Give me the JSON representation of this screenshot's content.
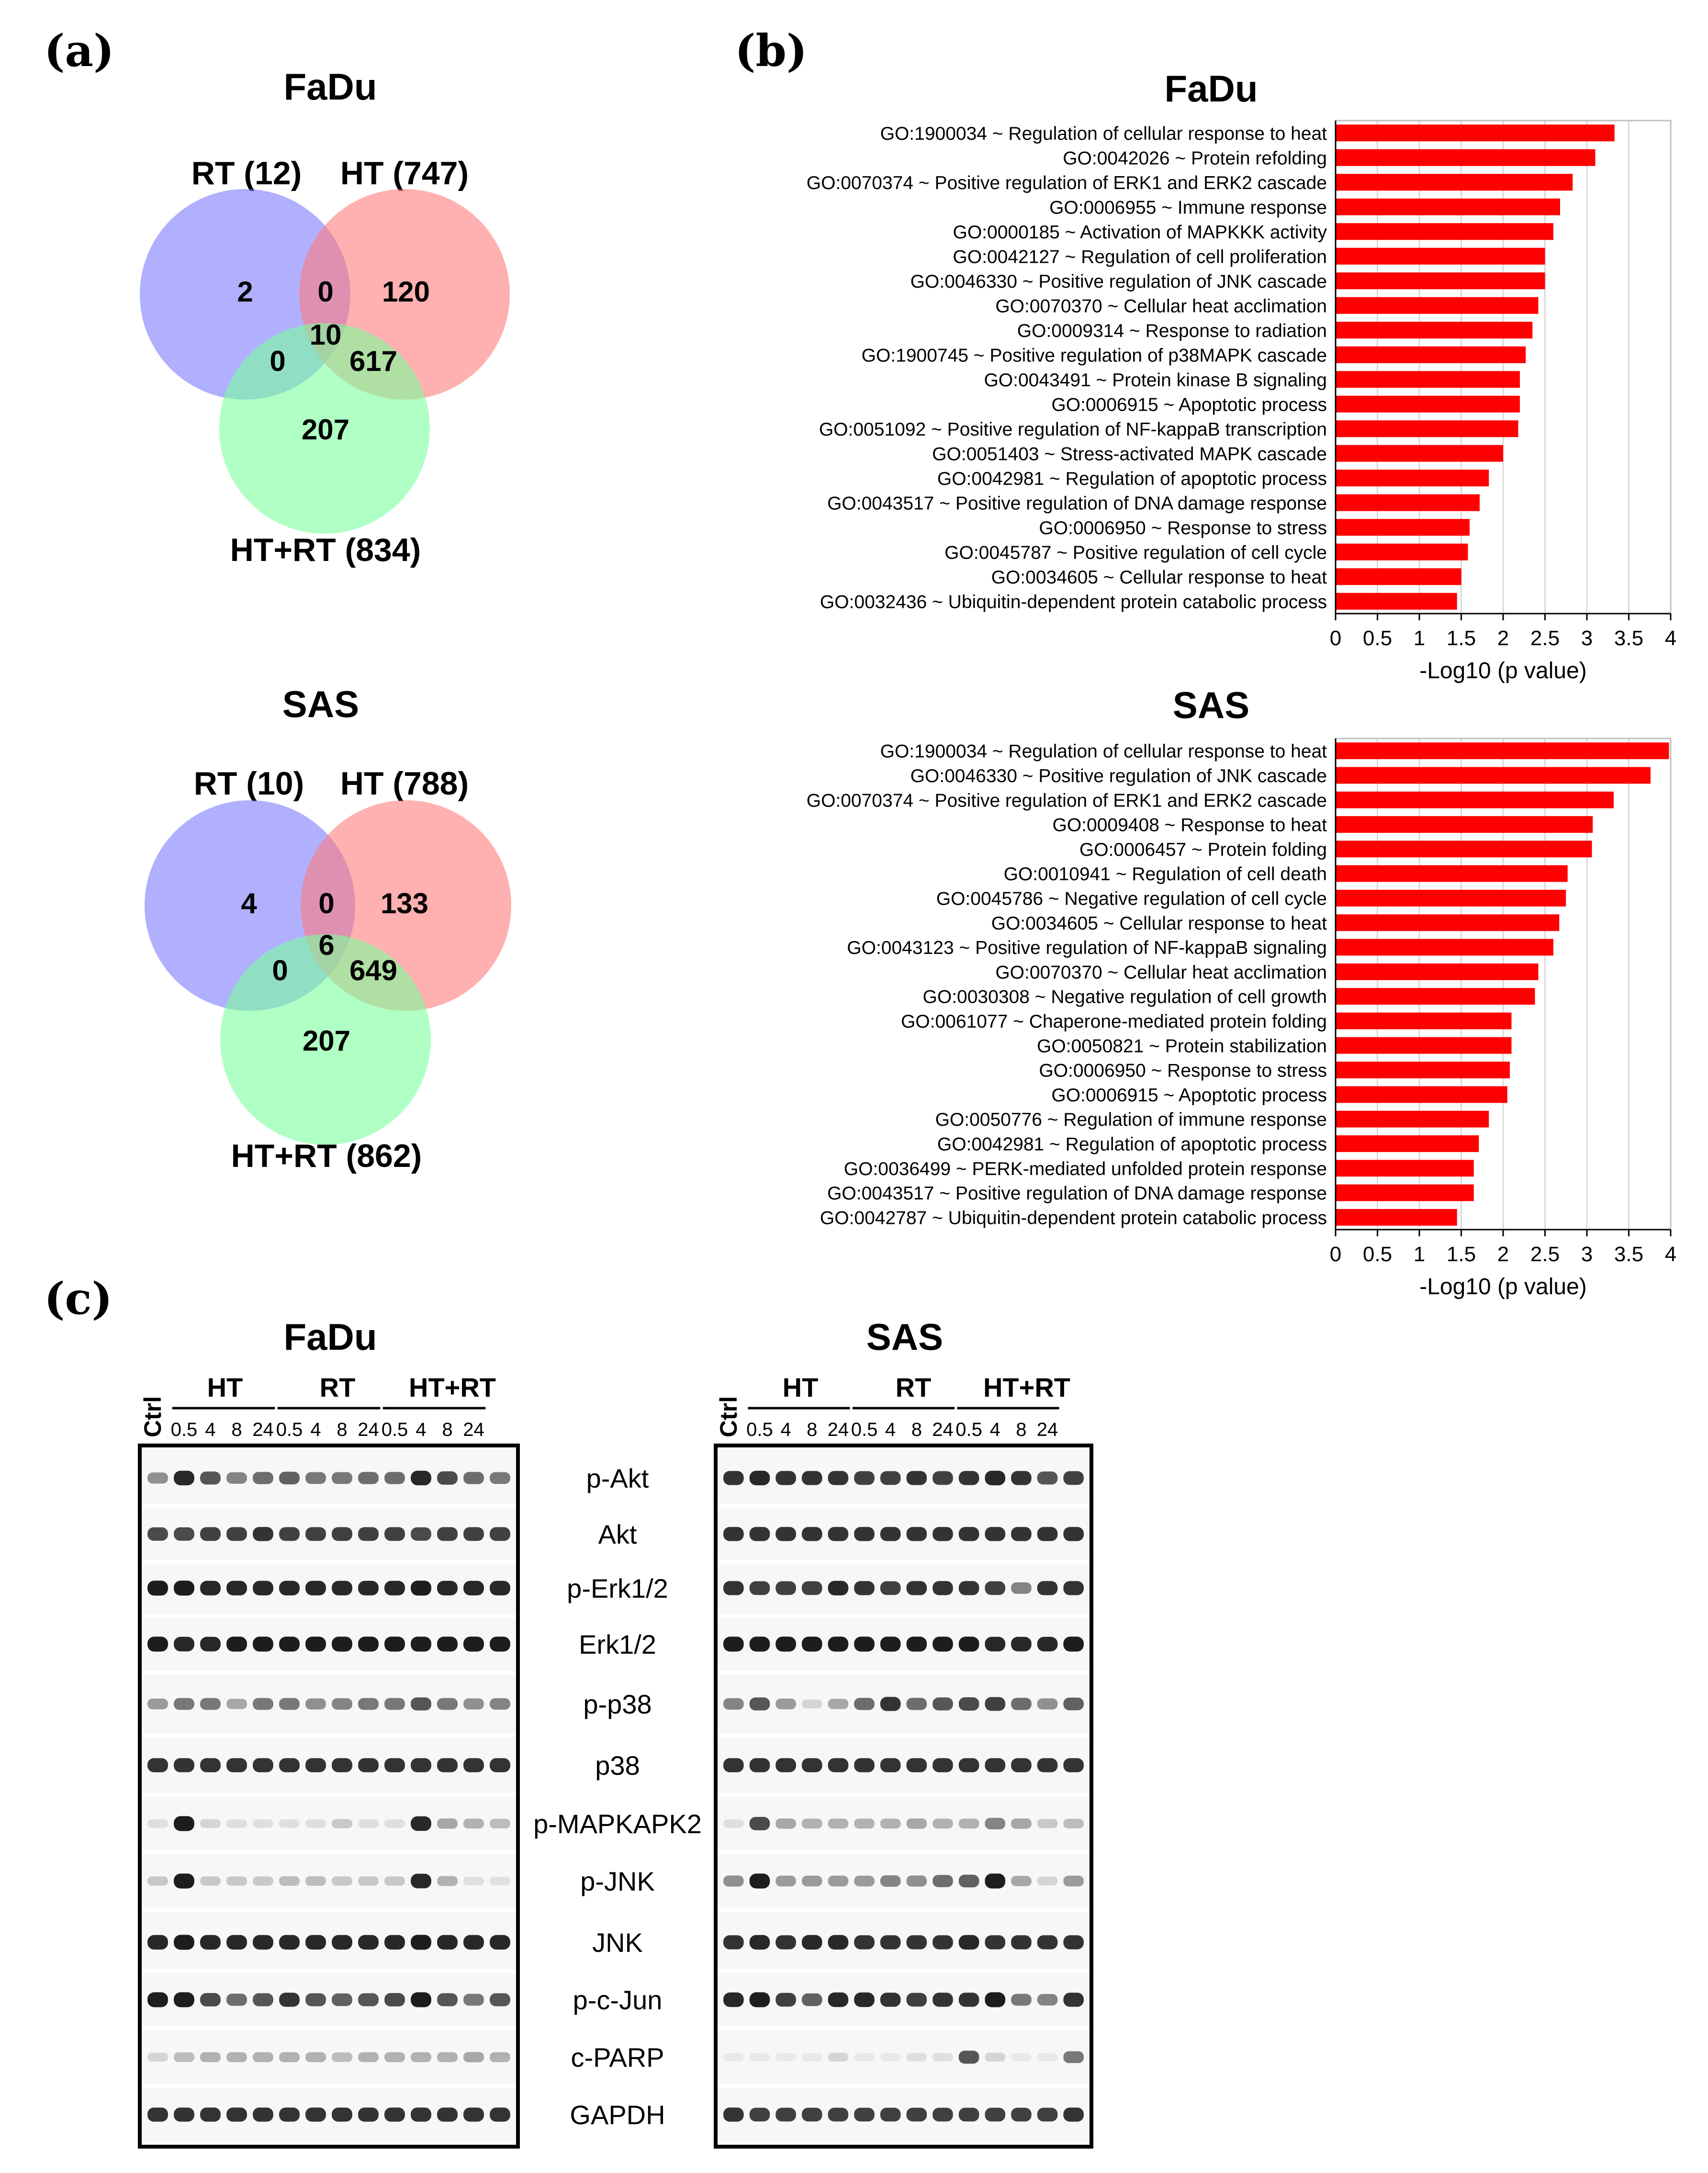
{
  "panel_labels": {
    "a": "(a)",
    "b": "(b)",
    "c": "(c)"
  },
  "venn": [
    {
      "title": "FaDu",
      "sets": [
        "RT (12)",
        "HT (747)",
        "HT+RT (834)"
      ],
      "regions": {
        "rt_only": "2",
        "ht_only": "120",
        "rt_ht": "0",
        "all": "10",
        "rt_htrt": "0",
        "ht_htrt": "617",
        "htrt_only": "207"
      },
      "colors": {
        "rt": "#7b7bff",
        "ht": "#ff7b7b",
        "htrt": "#7bff9c"
      }
    },
    {
      "title": "SAS",
      "sets": [
        "RT (10)",
        "HT (788)",
        "HT+RT (862)"
      ],
      "regions": {
        "rt_only": "4",
        "ht_only": "133",
        "rt_ht": "0",
        "all": "6",
        "rt_htrt": "0",
        "ht_htrt": "649",
        "htrt_only": "207"
      },
      "colors": {
        "rt": "#7b7bff",
        "ht": "#ff7b7b",
        "htrt": "#7bff9c"
      }
    }
  ],
  "chart_data": [
    {
      "type": "bar",
      "orientation": "horizontal",
      "title": "FaDu",
      "xlabel": "-Log10 (p value)",
      "xlim": [
        0,
        4
      ],
      "xticks": [
        "0",
        "0.5",
        "1",
        "1.5",
        "2",
        "2.5",
        "3",
        "3.5",
        "4"
      ],
      "bar_color": "#ff0000",
      "categories": [
        "GO:1900034 ~ Regulation of cellular response to heat",
        "GO:0042026 ~ Protein refolding",
        "GO:0070374 ~ Positive regulation of ERK1 and ERK2 cascade",
        "GO:0006955 ~ Immune response",
        "GO:0000185 ~ Activation of MAPKKK activity",
        "GO:0042127 ~ Regulation of cell proliferation",
        "GO:0046330 ~ Positive regulation of JNK cascade",
        "GO:0070370 ~ Cellular heat acclimation",
        "GO:0009314 ~ Response to radiation",
        "GO:1900745 ~ Positive regulation of p38MAPK cascade",
        "GO:0043491 ~ Protein kinase B signaling",
        "GO:0006915 ~ Apoptotic process",
        "GO:0051092 ~ Positive regulation of NF-kappaB transcription",
        "GO:0051403 ~ Stress-activated MAPK cascade",
        "GO:0042981 ~ Regulation of apoptotic process",
        "GO:0043517 ~ Positive regulation of DNA damage response",
        "GO:0006950 ~ Response to stress",
        "GO:0045787 ~ Positive regulation of cell cycle",
        "GO:0034605 ~ Cellular response to heat",
        "GO:0032436 ~ Ubiquitin-dependent protein catabolic process"
      ],
      "values": [
        3.33,
        3.1,
        2.83,
        2.68,
        2.6,
        2.5,
        2.5,
        2.42,
        2.35,
        2.27,
        2.2,
        2.2,
        2.18,
        2.0,
        1.83,
        1.72,
        1.6,
        1.58,
        1.5,
        1.45
      ]
    },
    {
      "type": "bar",
      "orientation": "horizontal",
      "title": "SAS",
      "xlabel": "-Log10 (p value)",
      "xlim": [
        0,
        4
      ],
      "xticks": [
        "0",
        "0.5",
        "1",
        "1.5",
        "2",
        "2.5",
        "3",
        "3.5",
        "4"
      ],
      "bar_color": "#ff0000",
      "categories": [
        "GO:1900034 ~ Regulation of cellular response to heat",
        "GO:0046330 ~ Positive regulation of JNK cascade",
        "GO:0070374 ~ Positive regulation of ERK1 and ERK2 cascade",
        "GO:0009408 ~ Response to heat",
        "GO:0006457 ~ Protein folding",
        "GO:0010941 ~ Regulation of cell death",
        "GO:0045786 ~ Negative regulation of cell cycle",
        "GO:0034605 ~ Cellular response to heat",
        "GO:0043123 ~ Positive regulation of NF-kappaB signaling",
        "GO:0070370 ~ Cellular heat acclimation",
        "GO:0030308 ~ Negative regulation of cell growth",
        "GO:0061077 ~ Chaperone-mediated protein folding",
        "GO:0050821 ~ Protein stabilization",
        "GO:0006950 ~ Response to stress",
        "GO:0006915 ~ Apoptotic process",
        "GO:0050776 ~ Regulation of immune response",
        "GO:0042981 ~ Regulation of apoptotic process",
        "GO:0036499 ~ PERK-mediated unfolded protein response",
        "GO:0043517 ~ Positive regulation of DNA damage response",
        "GO:0042787 ~ Ubiquitin-dependent protein catabolic process"
      ],
      "values": [
        3.98,
        3.76,
        3.32,
        3.07,
        3.06,
        2.77,
        2.75,
        2.67,
        2.6,
        2.42,
        2.38,
        2.1,
        2.1,
        2.08,
        2.05,
        1.83,
        1.71,
        1.65,
        1.65,
        1.45
      ]
    }
  ],
  "blots": [
    {
      "title": "FaDu",
      "ctrl": "Ctrl",
      "groups": [
        "HT",
        "RT",
        "HT+RT"
      ],
      "timepoints": [
        "0.5",
        "4",
        "8",
        "24"
      ],
      "intensity": [
        [
          0.45,
          0.9,
          0.7,
          0.5,
          0.6,
          0.65,
          0.55,
          0.55,
          0.6,
          0.6,
          0.9,
          0.75,
          0.6,
          0.55
        ],
        [
          0.75,
          0.75,
          0.8,
          0.8,
          0.85,
          0.8,
          0.8,
          0.8,
          0.8,
          0.8,
          0.75,
          0.8,
          0.8,
          0.8
        ],
        [
          0.95,
          0.95,
          0.9,
          0.9,
          0.9,
          0.9,
          0.9,
          0.9,
          0.9,
          0.9,
          0.95,
          0.9,
          0.9,
          0.9
        ],
        [
          0.95,
          0.9,
          0.9,
          0.95,
          0.95,
          0.95,
          0.95,
          0.95,
          0.95,
          0.95,
          0.95,
          0.95,
          0.95,
          0.95
        ],
        [
          0.4,
          0.55,
          0.55,
          0.35,
          0.55,
          0.55,
          0.45,
          0.5,
          0.55,
          0.55,
          0.7,
          0.55,
          0.45,
          0.5
        ],
        [
          0.85,
          0.85,
          0.85,
          0.85,
          0.85,
          0.85,
          0.85,
          0.85,
          0.85,
          0.85,
          0.85,
          0.85,
          0.85,
          0.85
        ],
        [
          0.1,
          0.95,
          0.15,
          0.1,
          0.1,
          0.1,
          0.1,
          0.2,
          0.1,
          0.1,
          0.9,
          0.35,
          0.3,
          0.25
        ],
        [
          0.2,
          0.95,
          0.2,
          0.2,
          0.2,
          0.25,
          0.25,
          0.2,
          0.2,
          0.2,
          0.9,
          0.3,
          0.1,
          0.1
        ],
        [
          0.9,
          0.95,
          0.9,
          0.9,
          0.9,
          0.9,
          0.9,
          0.9,
          0.9,
          0.9,
          0.95,
          0.9,
          0.9,
          0.9
        ],
        [
          0.95,
          0.95,
          0.75,
          0.6,
          0.7,
          0.85,
          0.7,
          0.65,
          0.7,
          0.75,
          0.95,
          0.7,
          0.55,
          0.7
        ],
        [
          0.15,
          0.25,
          0.3,
          0.3,
          0.3,
          0.3,
          0.3,
          0.25,
          0.3,
          0.3,
          0.3,
          0.3,
          0.35,
          0.3
        ],
        [
          0.85,
          0.85,
          0.85,
          0.85,
          0.85,
          0.85,
          0.85,
          0.85,
          0.85,
          0.85,
          0.85,
          0.85,
          0.85,
          0.85
        ]
      ]
    },
    {
      "title": "SAS",
      "ctrl": "Ctrl",
      "groups": [
        "HT",
        "RT",
        "HT+RT"
      ],
      "timepoints": [
        "0.5",
        "4",
        "8",
        "24"
      ],
      "intensity": [
        [
          0.85,
          0.9,
          0.85,
          0.85,
          0.85,
          0.8,
          0.8,
          0.85,
          0.8,
          0.85,
          0.9,
          0.85,
          0.7,
          0.8
        ],
        [
          0.85,
          0.85,
          0.85,
          0.85,
          0.85,
          0.85,
          0.85,
          0.85,
          0.85,
          0.85,
          0.85,
          0.85,
          0.85,
          0.85
        ],
        [
          0.85,
          0.8,
          0.8,
          0.8,
          0.9,
          0.85,
          0.8,
          0.85,
          0.85,
          0.85,
          0.8,
          0.5,
          0.85,
          0.85
        ],
        [
          0.95,
          0.95,
          0.95,
          0.95,
          0.95,
          0.95,
          0.95,
          0.95,
          0.95,
          0.95,
          0.9,
          0.9,
          0.9,
          0.95
        ],
        [
          0.5,
          0.7,
          0.4,
          0.15,
          0.35,
          0.6,
          0.85,
          0.6,
          0.7,
          0.75,
          0.8,
          0.6,
          0.45,
          0.65
        ],
        [
          0.85,
          0.85,
          0.85,
          0.85,
          0.85,
          0.85,
          0.85,
          0.85,
          0.85,
          0.85,
          0.85,
          0.85,
          0.85,
          0.85
        ],
        [
          0.1,
          0.75,
          0.35,
          0.3,
          0.3,
          0.3,
          0.3,
          0.35,
          0.3,
          0.3,
          0.5,
          0.35,
          0.2,
          0.25
        ],
        [
          0.45,
          0.95,
          0.4,
          0.4,
          0.4,
          0.4,
          0.5,
          0.45,
          0.6,
          0.65,
          0.95,
          0.35,
          0.15,
          0.4
        ],
        [
          0.85,
          0.9,
          0.85,
          0.9,
          0.9,
          0.85,
          0.85,
          0.85,
          0.85,
          0.9,
          0.85,
          0.85,
          0.85,
          0.85
        ],
        [
          0.9,
          0.95,
          0.8,
          0.65,
          0.9,
          0.9,
          0.85,
          0.8,
          0.85,
          0.85,
          0.95,
          0.55,
          0.5,
          0.85
        ],
        [
          0.05,
          0.05,
          0.05,
          0.05,
          0.15,
          0.05,
          0.05,
          0.1,
          0.1,
          0.7,
          0.15,
          0.05,
          0.05,
          0.55
        ],
        [
          0.85,
          0.8,
          0.8,
          0.8,
          0.8,
          0.8,
          0.8,
          0.8,
          0.8,
          0.8,
          0.8,
          0.8,
          0.8,
          0.85
        ]
      ]
    }
  ],
  "proteins": [
    "p-Akt",
    "Akt",
    "p-Erk1/2",
    "Erk1/2",
    "p-p38",
    "p38",
    "p-MAPKAPK2",
    "p-JNK",
    "JNK",
    "p-c-Jun",
    "c-PARP",
    "GAPDH"
  ]
}
